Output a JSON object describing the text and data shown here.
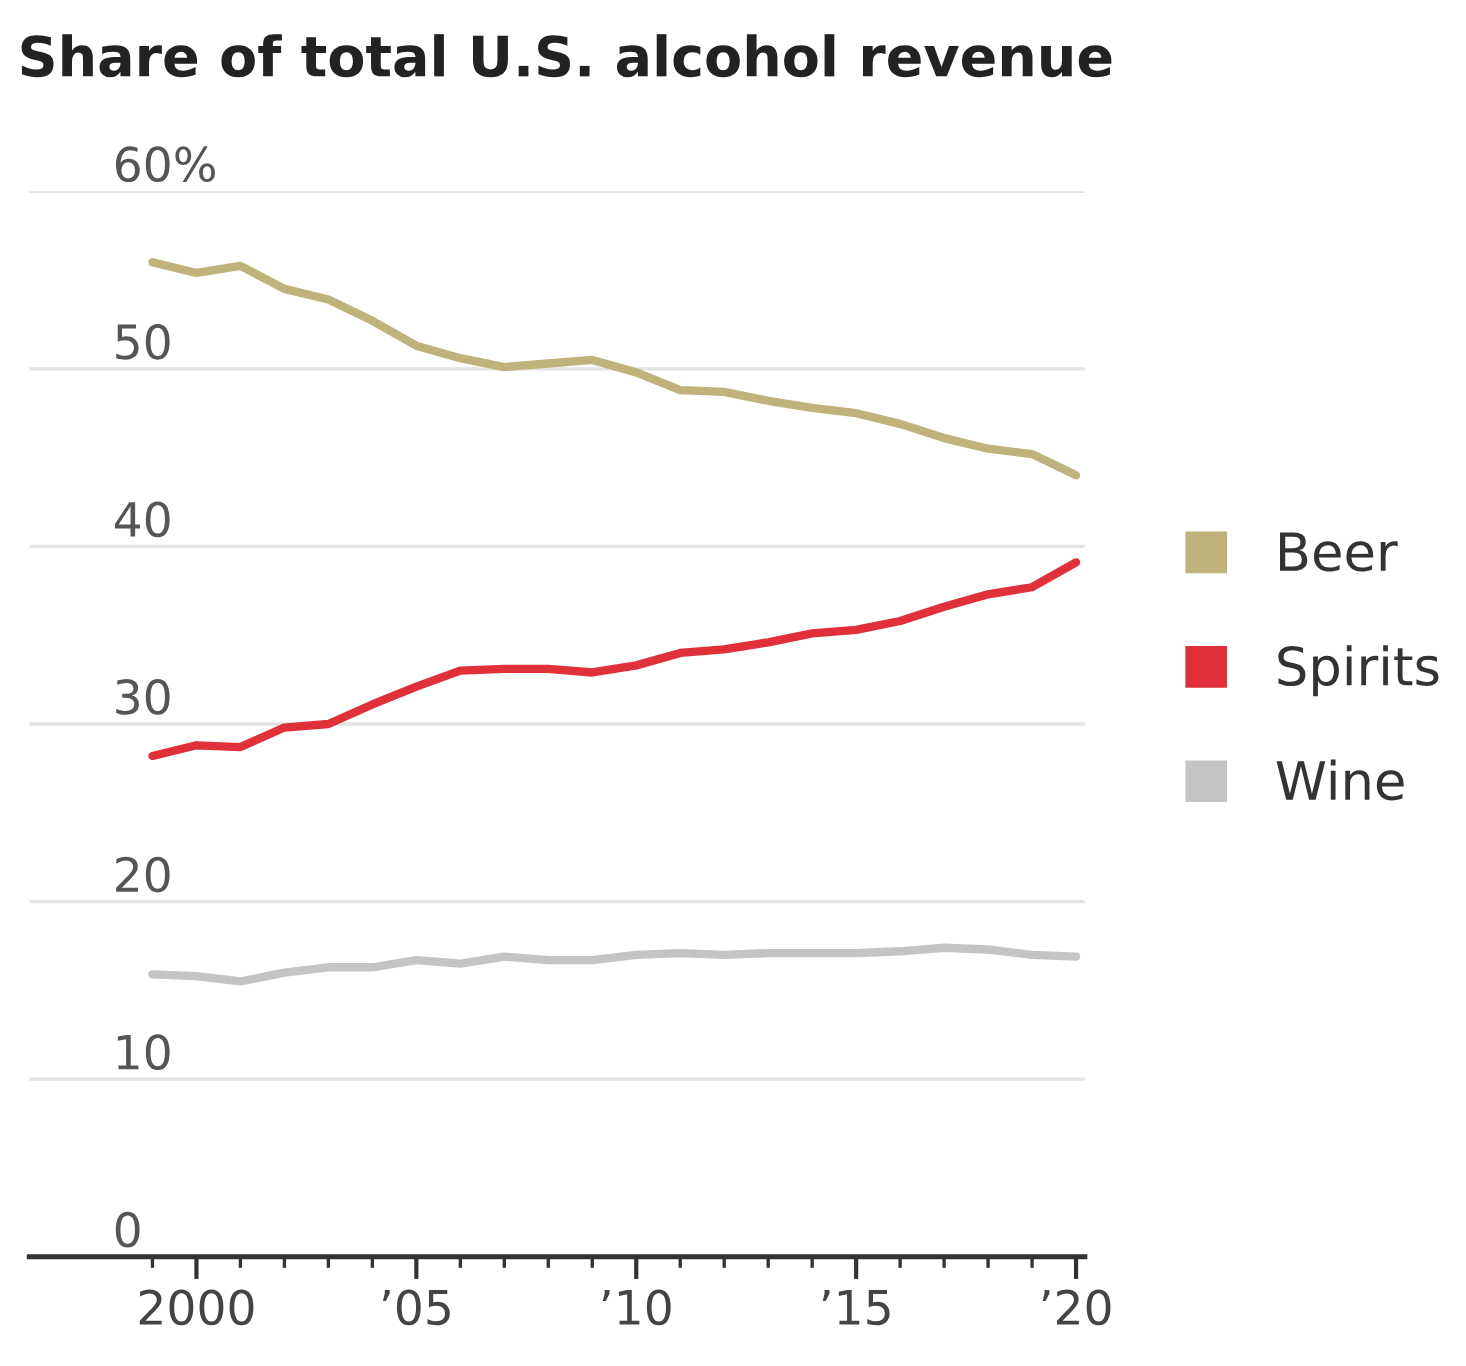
{
  "chart_data": {
    "type": "line",
    "title": "Share of total U.S. alcohol revenue",
    "x": [
      1999,
      2000,
      2001,
      2002,
      2003,
      2004,
      2005,
      2006,
      2007,
      2008,
      2009,
      2010,
      2011,
      2012,
      2013,
      2014,
      2015,
      2016,
      2017,
      2018,
      2019,
      2020
    ],
    "series": [
      {
        "name": "Beer",
        "color": "#bfb27a",
        "values": [
          56.0,
          55.4,
          55.8,
          54.5,
          53.9,
          52.7,
          51.3,
          50.6,
          50.1,
          50.3,
          50.5,
          49.8,
          48.8,
          48.7,
          48.2,
          47.8,
          47.5,
          46.9,
          46.1,
          45.5,
          45.2,
          44.0
        ]
      },
      {
        "name": "Spirits",
        "color": "#e0303a",
        "values": [
          28.2,
          28.8,
          28.7,
          29.8,
          30.0,
          31.1,
          32.1,
          33.0,
          33.1,
          33.1,
          32.9,
          33.3,
          34.0,
          34.2,
          34.6,
          35.1,
          35.3,
          35.8,
          36.6,
          37.3,
          37.7,
          39.1
        ]
      },
      {
        "name": "Wine",
        "color": "#c4c4c4",
        "values": [
          15.9,
          15.8,
          15.5,
          16.0,
          16.3,
          16.3,
          16.7,
          16.5,
          16.9,
          16.7,
          16.7,
          17.0,
          17.1,
          17.0,
          17.1,
          17.1,
          17.1,
          17.2,
          17.4,
          17.3,
          17.0,
          16.9
        ]
      }
    ],
    "xlim": [
      1996.2,
      2020.2
    ],
    "ylim": [
      0,
      60
    ],
    "xticks": [
      {
        "value": 1999,
        "label": null
      },
      {
        "value": 2000,
        "label": "2000"
      },
      {
        "value": 2001,
        "label": null
      },
      {
        "value": 2002,
        "label": null
      },
      {
        "value": 2003,
        "label": null
      },
      {
        "value": 2004,
        "label": null
      },
      {
        "value": 2005,
        "label": "’05"
      },
      {
        "value": 2006,
        "label": null
      },
      {
        "value": 2007,
        "label": null
      },
      {
        "value": 2008,
        "label": null
      },
      {
        "value": 2009,
        "label": null
      },
      {
        "value": 2010,
        "label": "’10"
      },
      {
        "value": 2011,
        "label": null
      },
      {
        "value": 2012,
        "label": null
      },
      {
        "value": 2013,
        "label": null
      },
      {
        "value": 2014,
        "label": null
      },
      {
        "value": 2015,
        "label": "’15"
      },
      {
        "value": 2016,
        "label": null
      },
      {
        "value": 2017,
        "label": null
      },
      {
        "value": 2018,
        "label": null
      },
      {
        "value": 2019,
        "label": null
      },
      {
        "value": 2020,
        "label": "’20"
      }
    ],
    "yticks": [
      0,
      10,
      20,
      30,
      40,
      50,
      {
        "value": 60,
        "label": "60%"
      }
    ],
    "grid": "y",
    "legend": "right",
    "marker": "none",
    "line_style": "solid"
  }
}
